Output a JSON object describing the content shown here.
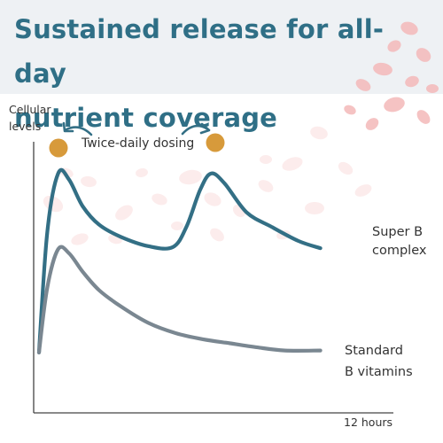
{
  "title_lines": [
    "Sustained release for all-day",
    "nutrient coverage"
  ],
  "colors": {
    "super_b": "#336f85",
    "standard": "#7a8791",
    "pill": "#d79a3b",
    "title": "#2f6f86",
    "axis": "#444444",
    "header_bg": "#eef1f4",
    "blood_cells": "#f3b9b9"
  },
  "chart_data": {
    "type": "line",
    "title": "Sustained release for all-day nutrient coverage",
    "ylabel": "Cellular levels",
    "xlabel": "",
    "x_tick_label": "12 hours",
    "xlim": [
      0,
      12
    ],
    "ylim": [
      0,
      10
    ],
    "annotation": "Twice-daily dosing",
    "dosing_times": [
      0.7,
      6.0
    ],
    "series": [
      {
        "name_lines": [
          "Super B",
          "complex"
        ],
        "x": [
          0,
          0.3,
          0.7,
          1.1,
          1.6,
          2.2,
          3.0,
          4.0,
          4.9,
          5.4,
          5.9,
          6.3,
          6.8,
          7.6,
          8.5,
          9.5,
          10.3
        ],
        "y": [
          0.35,
          6.2,
          9.1,
          8.8,
          7.5,
          6.6,
          6.0,
          5.55,
          5.5,
          6.5,
          8.3,
          9.1,
          8.6,
          7.2,
          6.5,
          5.8,
          5.45
        ]
      },
      {
        "name_lines": [
          "Standard",
          "B vitamins"
        ],
        "x": [
          0,
          0.3,
          0.7,
          1.1,
          1.6,
          2.2,
          3.0,
          4.0,
          5.0,
          6.0,
          7.0,
          8.0,
          9.0,
          10.3
        ],
        "y": [
          0.35,
          3.5,
          5.4,
          5.2,
          4.3,
          3.4,
          2.6,
          1.8,
          1.3,
          1.0,
          0.8,
          0.6,
          0.45,
          0.45
        ]
      }
    ]
  }
}
